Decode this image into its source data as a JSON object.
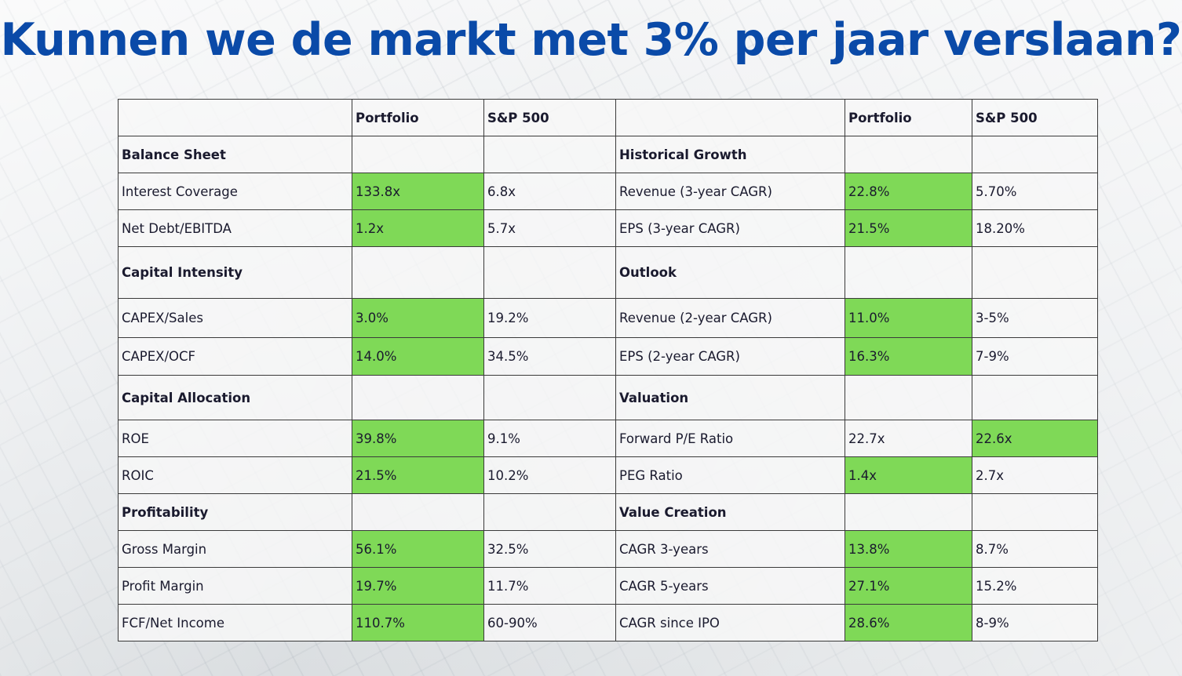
{
  "title": "Kunnen we de markt met 3% per jaar verslaan?",
  "colors": {
    "title": "#0a4aa8",
    "highlight": "#7fd957"
  },
  "columns": {
    "left": [
      "",
      "Portfolio",
      "S&P 500"
    ],
    "right": [
      "",
      "Portfolio",
      "S&P 500"
    ]
  },
  "rows": [
    {
      "type": "section",
      "left": {
        "label": "Balance Sheet"
      },
      "right": {
        "label": "Historical Growth"
      }
    },
    {
      "type": "data",
      "left": {
        "label": "Interest Coverage",
        "portfolio": "133.8x",
        "sp500": "6.8x",
        "highlight": "portfolio"
      },
      "right": {
        "label": "Revenue (3-year CAGR)",
        "portfolio": "22.8%",
        "sp500": "5.70%",
        "highlight": "portfolio"
      }
    },
    {
      "type": "data",
      "left": {
        "label": "Net Debt/EBITDA",
        "portfolio": "1.2x",
        "sp500": "5.7x",
        "highlight": "portfolio"
      },
      "right": {
        "label": "EPS (3-year CAGR)",
        "portfolio": "21.5%",
        "sp500": "18.20%",
        "highlight": "portfolio"
      }
    },
    {
      "type": "section",
      "left": {
        "label": "Capital Intensity"
      },
      "right": {
        "label": "Outlook"
      }
    },
    {
      "type": "data",
      "left": {
        "label": "CAPEX/Sales",
        "portfolio": "3.0%",
        "sp500": "19.2%",
        "highlight": "portfolio"
      },
      "right": {
        "label": "Revenue (2-year CAGR)",
        "portfolio": "11.0%",
        "sp500": "3-5%",
        "highlight": "portfolio"
      }
    },
    {
      "type": "data",
      "left": {
        "label": "CAPEX/OCF",
        "portfolio": "14.0%",
        "sp500": "34.5%",
        "highlight": "portfolio"
      },
      "right": {
        "label": "EPS (2-year CAGR)",
        "portfolio": "16.3%",
        "sp500": "7-9%",
        "highlight": "portfolio"
      }
    },
    {
      "type": "section",
      "left": {
        "label": "Capital Allocation"
      },
      "right": {
        "label": "Valuation"
      }
    },
    {
      "type": "data",
      "left": {
        "label": "ROE",
        "portfolio": "39.8%",
        "sp500": "9.1%",
        "highlight": "portfolio"
      },
      "right": {
        "label": "Forward P/E Ratio",
        "portfolio": "22.7x",
        "sp500": "22.6x",
        "highlight": "sp500"
      }
    },
    {
      "type": "data",
      "left": {
        "label": "ROIC",
        "portfolio": "21.5%",
        "sp500": "10.2%",
        "highlight": "portfolio"
      },
      "right": {
        "label": "PEG Ratio",
        "portfolio": "1.4x",
        "sp500": "2.7x",
        "highlight": "portfolio"
      }
    },
    {
      "type": "section",
      "left": {
        "label": "Profitability"
      },
      "right": {
        "label": "Value Creation"
      }
    },
    {
      "type": "data",
      "left": {
        "label": "Gross Margin",
        "portfolio": "56.1%",
        "sp500": "32.5%",
        "highlight": "portfolio"
      },
      "right": {
        "label": "CAGR 3-years",
        "portfolio": "13.8%",
        "sp500": "8.7%",
        "highlight": "portfolio"
      }
    },
    {
      "type": "data",
      "left": {
        "label": "Profit Margin",
        "portfolio": "19.7%",
        "sp500": "11.7%",
        "highlight": "portfolio"
      },
      "right": {
        "label": "CAGR 5-years",
        "portfolio": "27.1%",
        "sp500": "15.2%",
        "highlight": "portfolio"
      }
    },
    {
      "type": "data",
      "left": {
        "label": "FCF/Net Income",
        "portfolio": "110.7%",
        "sp500": "60-90%",
        "highlight": "portfolio"
      },
      "right": {
        "label": "CAGR since IPO",
        "portfolio": "28.6%",
        "sp500": "8-9%",
        "highlight": "portfolio"
      }
    }
  ]
}
